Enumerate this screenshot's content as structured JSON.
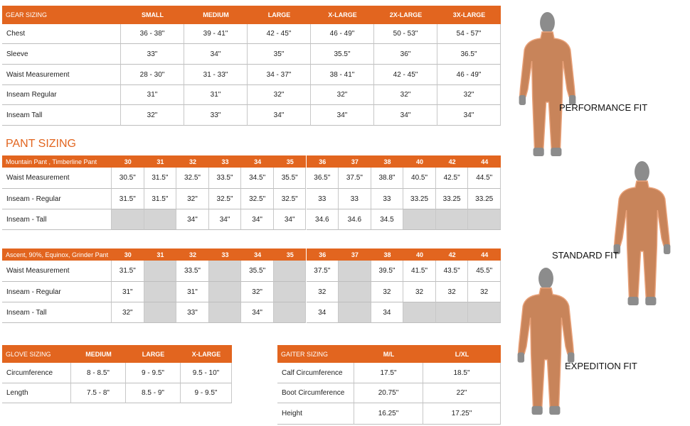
{
  "gear_sizing": {
    "header": [
      "GEAR SIZING",
      "SMALL",
      "MEDIUM",
      "LARGE",
      "X-LARGE",
      "2X-LARGE",
      "3X-LARGE"
    ],
    "rows": [
      {
        "label": "Chest",
        "values": [
          "36 - 38\"",
          "39 - 41\"",
          "42 - 45\"",
          "46 - 49\"",
          "50 - 53\"",
          "54 - 57\""
        ]
      },
      {
        "label": "Sleeve",
        "values": [
          "33\"",
          "34\"",
          "35\"",
          "35.5\"",
          "36\"",
          "36.5\""
        ]
      },
      {
        "label": "Waist Measurement",
        "values": [
          "28 - 30\"",
          "31 - 33\"",
          "34 - 37\"",
          "38 - 41\"",
          "42 - 45\"",
          "46 - 49\""
        ]
      },
      {
        "label": "Inseam Regular",
        "values": [
          "31\"",
          "31\"",
          "32\"",
          "32\"",
          "32\"",
          "32\""
        ]
      },
      {
        "label": "Inseam Tall",
        "values": [
          "32\"",
          "33\"",
          "34\"",
          "34\"",
          "34\"",
          "34\""
        ]
      }
    ]
  },
  "pant_sizing_title": "PANT SIZING",
  "mountain_pant": {
    "header": [
      "Mountain Pant , Timberline Pant",
      "30",
      "31",
      "32",
      "33",
      "34",
      "35",
      "36",
      "37",
      "38",
      "40",
      "42",
      "44"
    ],
    "rows": [
      {
        "label": "Waist Measurement",
        "values": [
          "30.5\"",
          "31.5\"",
          "32.5\"",
          "33.5\"",
          "34.5\"",
          "35.5\"",
          "36.5\"",
          "37.5\"",
          "38.8\"",
          "40.5\"",
          "42.5\"",
          "44.5\""
        ]
      },
      {
        "label": "Inseam - Regular",
        "values": [
          "31.5\"",
          "31.5\"",
          "32\"",
          "32.5\"",
          "32.5\"",
          "32.5\"",
          "33",
          "33",
          "33",
          "33.25",
          "33.25",
          "33.25"
        ]
      },
      {
        "label": "Inseam - Tall",
        "values": [
          null,
          null,
          "34\"",
          "34\"",
          "34\"",
          "34\"",
          "34.6",
          "34.6",
          "34.5",
          null,
          null,
          null
        ]
      }
    ]
  },
  "ascent_pant": {
    "header": [
      "Ascent, 90%, Equinox, Grinder Pant",
      "30",
      "31",
      "32",
      "33",
      "34",
      "35",
      "36",
      "37",
      "38",
      "40",
      "42",
      "44"
    ],
    "rows": [
      {
        "label": "Waist Measurement",
        "values": [
          "31.5\"",
          null,
          "33.5\"",
          null,
          "35.5\"",
          null,
          "37.5\"",
          null,
          "39.5\"",
          "41.5\"",
          "43.5\"",
          "45.5\""
        ]
      },
      {
        "label": "Inseam - Regular",
        "values": [
          "31\"",
          null,
          "31\"",
          null,
          "32\"",
          null,
          "32",
          null,
          "32",
          "32",
          "32",
          "32"
        ]
      },
      {
        "label": "Inseam - Tall",
        "values": [
          "32\"",
          null,
          "33\"",
          null,
          "34\"",
          null,
          "34",
          null,
          "34",
          null,
          null,
          null
        ]
      }
    ]
  },
  "glove_sizing": {
    "header": [
      "GLOVE SIZING",
      "MEDIUM",
      "LARGE",
      "X-LARGE"
    ],
    "rows": [
      {
        "label": "Circumference",
        "values": [
          "8 - 8.5\"",
          "9 - 9.5\"",
          "9.5 - 10\""
        ]
      },
      {
        "label": "Length",
        "values": [
          "7.5 - 8\"",
          "8.5 - 9\"",
          "9 - 9.5\""
        ]
      }
    ]
  },
  "gaiter_sizing": {
    "header": [
      "GAITER SIZING",
      "M/L",
      "L/XL"
    ],
    "rows": [
      {
        "label": "Calf Circumference",
        "values": [
          "17.5\"",
          "18.5\""
        ]
      },
      {
        "label": "Boot Circumference",
        "values": [
          "20.75\"",
          "22\""
        ]
      },
      {
        "label": "Height",
        "values": [
          "16.25\"",
          "17.25\""
        ]
      }
    ]
  },
  "fits": [
    "PERFORMANCE FIT",
    "STANDARD FIT",
    "EXPEDITION FIT"
  ]
}
